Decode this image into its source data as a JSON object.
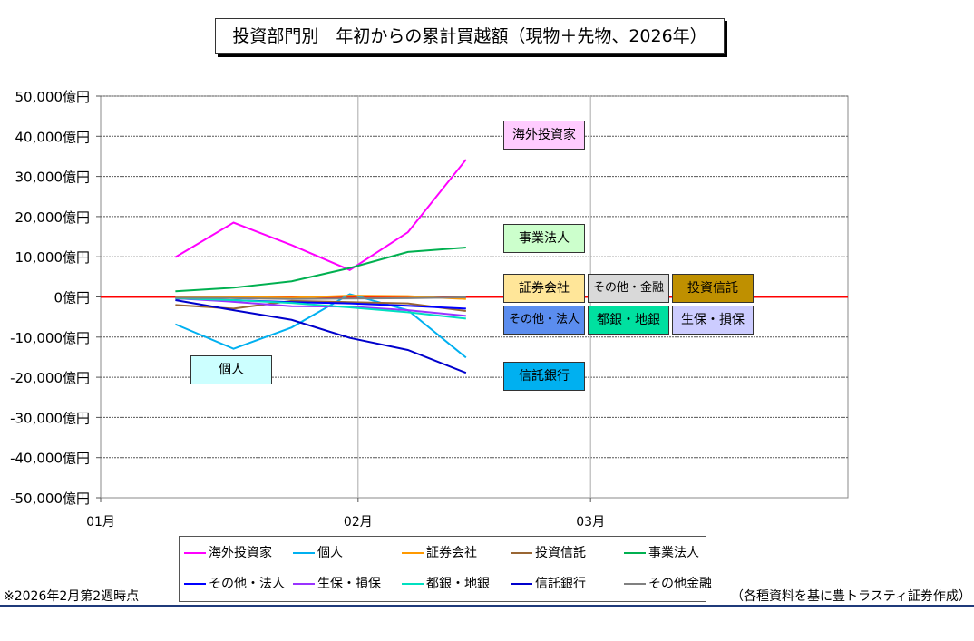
{
  "chart_data": {
    "type": "line",
    "title": "投資部門別　年初からの累計買越額（現物＋先物、2026年）",
    "xlabel": "",
    "ylabel": "",
    "x_days": [
      9,
      16,
      23,
      30,
      37,
      44
    ],
    "xlim": [
      0,
      90
    ],
    "xticks": [
      {
        "day": 0,
        "label": "01月"
      },
      {
        "day": 31,
        "label": "02月"
      },
      {
        "day": 59,
        "label": "03月"
      }
    ],
    "ylim": [
      -50000,
      50000
    ],
    "yticks": [
      "-50,000億円",
      "-40,000億円",
      "-30,000億円",
      "-20,000億円",
      "-10,000億円",
      "0億円",
      "10,000億円",
      "20,000億円",
      "30,000億円",
      "40,000億円",
      "50,000億円"
    ],
    "ytick_values": [
      -50000,
      -40000,
      -30000,
      -20000,
      -10000,
      0,
      10000,
      20000,
      30000,
      40000,
      50000
    ],
    "series": [
      {
        "name": "海外投資家",
        "color": "#ff00ff",
        "values": [
          9900,
          18500,
          12900,
          6700,
          16100,
          34200
        ]
      },
      {
        "name": "個人",
        "color": "#00b0f0",
        "values": [
          -6800,
          -12900,
          -7600,
          700,
          -3300,
          -15100
        ]
      },
      {
        "name": "証券会社",
        "color": "#ff9900",
        "values": [
          0,
          0,
          -200,
          300,
          200,
          -500
        ]
      },
      {
        "name": "投資信託",
        "color": "#996633",
        "values": [
          -2000,
          -2900,
          -1000,
          -1300,
          -1600,
          -3500
        ]
      },
      {
        "name": "事業法人",
        "color": "#00b050",
        "values": [
          1400,
          2300,
          3900,
          7200,
          11200,
          12300
        ]
      },
      {
        "name": "その他・法人",
        "color": "#0000ff",
        "values": [
          -400,
          -800,
          -1300,
          -1600,
          -2200,
          -2900
        ]
      },
      {
        "name": "生保・損保",
        "color": "#9933ff",
        "values": [
          -300,
          -1200,
          -2300,
          -2400,
          -3300,
          -4700
        ]
      },
      {
        "name": "都銀・地銀",
        "color": "#00e0c0",
        "values": [
          -300,
          -800,
          -1500,
          -2600,
          -3800,
          -5400
        ]
      },
      {
        "name": "信託銀行",
        "color": "#0000cc",
        "values": [
          -800,
          -3300,
          -5700,
          -10200,
          -13200,
          -18900
        ]
      },
      {
        "name": "その他金融",
        "color": "#808080",
        "values": [
          -200,
          -300,
          -500,
          -400,
          -300,
          -100
        ]
      }
    ],
    "legend_position": "bottom",
    "annotations": [
      {
        "text": "海外投資家",
        "bg": "#ffccff"
      },
      {
        "text": "事業法人",
        "bg": "#ccffcc"
      },
      {
        "text": "証券会社",
        "bg": "#ffe699"
      },
      {
        "text": "その他・金融",
        "bg": "#d9d9d9"
      },
      {
        "text": "投資信託",
        "bg": "#bf9000"
      },
      {
        "text": "その他・法人",
        "bg": "#5b8def"
      },
      {
        "text": "都銀・地銀",
        "bg": "#00e0a0"
      },
      {
        "text": "生保・損保",
        "bg": "#ccccff"
      },
      {
        "text": "信託銀行",
        "bg": "#00b0f0"
      },
      {
        "text": "個人",
        "bg": "#ccffff"
      }
    ]
  },
  "footnote": "※2026年2月第2週時点",
  "source": "（各種資料を基に豊トラスティ証券作成）"
}
